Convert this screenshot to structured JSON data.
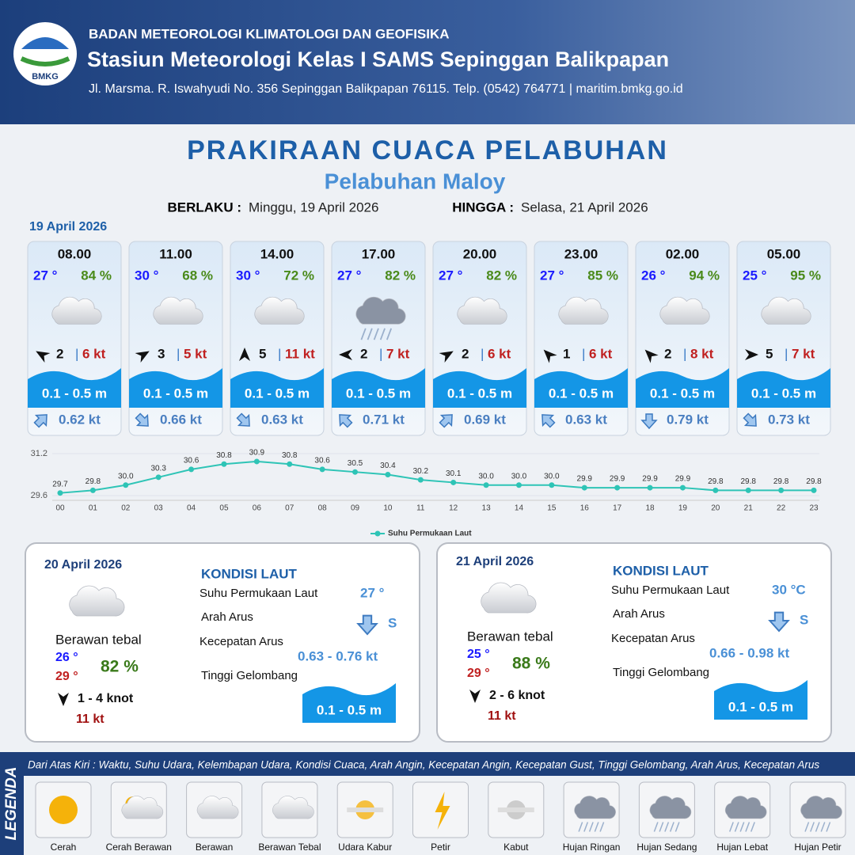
{
  "header": {
    "logo_text": "BMKG",
    "organization": "BADAN METEOROLOGI KLIMATOLOGI DAN GEOFISIKA",
    "station": "Stasiun Meteorologi Kelas I SAMS Sepinggan Balikpapan",
    "address": "Jl. Marsma. R. Iswahyudi No. 356 Sepinggan Balikpapan 76115. Telp. (0542) 764771 | maritim.bmkg.go.id"
  },
  "title": "PRAKIRAAN CUACA PELABUHAN",
  "subtitle": "Pelabuhan Maloy",
  "validity": {
    "from_label": "BERLAKU :",
    "from": "Minggu, 19 April 2026",
    "to_label": "HINGGA :",
    "to": "Selasa, 21 April 2026"
  },
  "day1": {
    "date": "19 April 2026",
    "slots": [
      {
        "time": "08.00",
        "temp": "27 °",
        "humidity": "84 %",
        "wind": "2",
        "gust": "6 kt",
        "wave": "0.1 - 0.5 m",
        "current": "0.62 kt"
      },
      {
        "time": "11.00",
        "temp": "30 °",
        "humidity": "68 %",
        "wind": "3",
        "gust": "5 kt",
        "wave": "0.1 - 0.5 m",
        "current": "0.66 kt"
      },
      {
        "time": "14.00",
        "temp": "30 °",
        "humidity": "72 %",
        "wind": "5",
        "gust": "11 kt",
        "wave": "0.1 - 0.5 m",
        "current": "0.63 kt"
      },
      {
        "time": "17.00",
        "temp": "27 °",
        "humidity": "82 %",
        "wind": "2",
        "gust": "7 kt",
        "wave": "0.1 - 0.5 m",
        "current": "0.71 kt"
      },
      {
        "time": "20.00",
        "temp": "27 °",
        "humidity": "82 %",
        "wind": "2",
        "gust": "6 kt",
        "wave": "0.1 - 0.5 m",
        "current": "0.69 kt"
      },
      {
        "time": "23.00",
        "temp": "27 °",
        "humidity": "85 %",
        "wind": "1",
        "gust": "6 kt",
        "wave": "0.1 - 0.5 m",
        "current": "0.63 kt"
      },
      {
        "time": "02.00",
        "temp": "26 °",
        "humidity": "94 %",
        "wind": "2",
        "gust": "8 kt",
        "wave": "0.1 - 0.5 m",
        "current": "0.79 kt"
      },
      {
        "time": "05.00",
        "temp": "25 °",
        "humidity": "95 %",
        "wind": "5",
        "gust": "7 kt",
        "wave": "0.1 - 0.5 m",
        "current": "0.73 kt"
      }
    ]
  },
  "chart_data": {
    "type": "line",
    "categories": [
      "00",
      "01",
      "02",
      "03",
      "04",
      "05",
      "06",
      "07",
      "08",
      "09",
      "10",
      "11",
      "12",
      "13",
      "14",
      "15",
      "16",
      "17",
      "18",
      "19",
      "20",
      "21",
      "22",
      "23"
    ],
    "series": [
      {
        "name": "Suhu Permukaan Laut",
        "color": "#2ec4b6",
        "values": [
          29.7,
          29.8,
          30.0,
          30.3,
          30.6,
          30.8,
          30.9,
          30.8,
          30.6,
          30.5,
          30.4,
          30.2,
          30.1,
          30.0,
          30.0,
          30.0,
          29.9,
          29.9,
          29.9,
          29.9,
          29.8,
          29.8,
          29.8,
          29.8
        ],
        "value_labels": [
          "29.7",
          "29.8",
          "30.0",
          "30.3",
          "30.6",
          "30.8",
          "30.9",
          "30.8",
          "30.6",
          "30.5",
          "30.4",
          "30.2",
          "30.1",
          "30.0",
          "30.0",
          "30.0",
          "29.9",
          "29.9",
          "29.9",
          "29.9",
          "29.8",
          "29.8",
          "29.8",
          "29.8"
        ]
      }
    ],
    "ylim": [
      29.6,
      31.2
    ],
    "yticks": [
      29.6,
      31.2
    ],
    "legend": "bottom"
  },
  "days": [
    {
      "date": "20 April 2026",
      "condition": "Berawan tebal",
      "temp_min": "26 °",
      "temp_max": "29 °",
      "humidity": "82 %",
      "wind": "1  - 4 knot",
      "gust": "11 kt",
      "sea_title": "KONDISI LAUT",
      "sst_label": "Suhu Permukaan Laut",
      "sst": "27 °",
      "dir_label": "Arah Arus",
      "dir": "S",
      "speed_label": "Kecepatan Arus",
      "speed": "0.63  - 0.76 kt",
      "wave_label": "Tinggi Gelombang",
      "wave": "0.1 - 0.5 m"
    },
    {
      "date": "21 April 2026",
      "condition": "Berawan tebal",
      "temp_min": "25 °",
      "temp_max": "29 °",
      "humidity": "88 %",
      "wind": "2  - 6 knot",
      "gust": "11 kt",
      "sea_title": "KONDISI LAUT",
      "sst_label": "Suhu Permukaan Laut",
      "sst": "30 °C",
      "dir_label": "Arah Arus",
      "dir": "S",
      "speed_label": "Kecepatan Arus",
      "speed": "0.66  - 0.98 kt",
      "wave_label": "Tinggi Gelombang",
      "wave": "0.1 - 0.5 m"
    }
  ],
  "legend": {
    "title": "LEGENDA",
    "description": "Dari Atas Kiri : Waktu, Suhu Udara, Kelembapan Udara, Kondisi Cuaca, Arah Angin, Kecepatan Angin, Kecepatan Gust, Tinggi Gelombang, Arah Arus, Kecepatan Arus",
    "items": [
      "Cerah",
      "Cerah Berawan",
      "Berawan",
      "Berawan Tebal",
      "Udara Kabur",
      "Petir",
      "Kabut",
      "Hujan Ringan",
      "Hujan Sedang",
      "Hujan Lebat",
      "Hujan Petir"
    ]
  }
}
